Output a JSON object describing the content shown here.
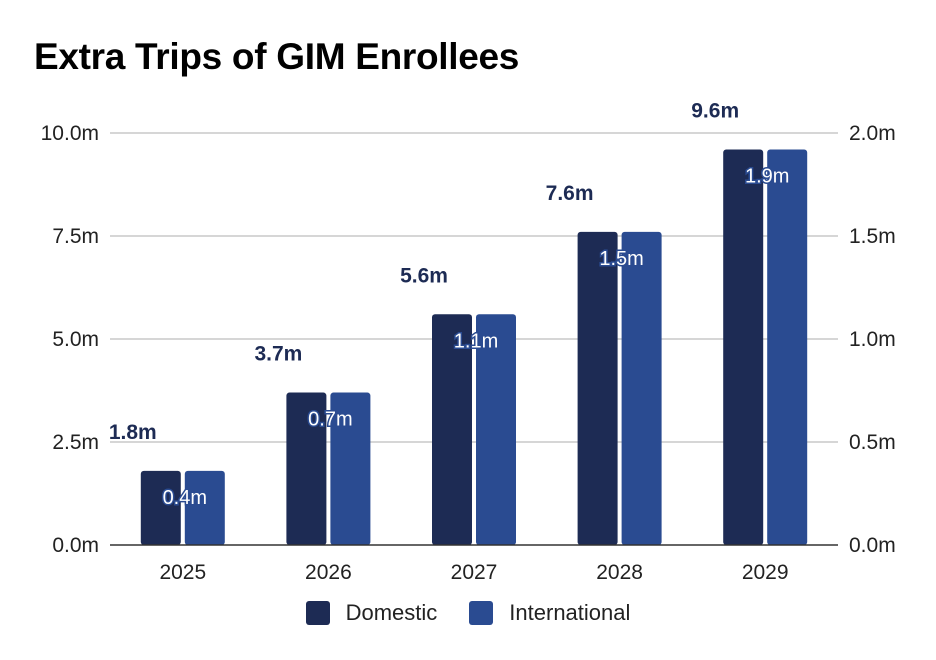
{
  "chart_data": {
    "type": "bar",
    "title": "Extra Trips of GIM Enrollees",
    "categories": [
      "2025",
      "2026",
      "2027",
      "2028",
      "2029"
    ],
    "series": [
      {
        "name": "Domestic",
        "axis": "left",
        "color": "#1d2b54",
        "values": [
          1.8,
          3.7,
          5.6,
          7.6,
          9.6
        ],
        "labels": [
          "1.8m",
          "3.7m",
          "5.6m",
          "7.6m",
          "9.6m"
        ]
      },
      {
        "name": "International",
        "axis": "right",
        "color": "#2a4b91",
        "values": [
          0.36,
          0.74,
          1.12,
          1.52,
          1.92
        ],
        "labels": [
          "0.4m",
          "0.7m",
          "1.1m",
          "1.5m",
          "1.9m"
        ]
      }
    ],
    "left_axis": {
      "ylim": [
        0,
        10
      ],
      "ticks": [
        0,
        2.5,
        5,
        7.5,
        10
      ],
      "tick_labels": [
        "0.0m",
        "2.5m",
        "5.0m",
        "7.5m",
        "10.0m"
      ]
    },
    "right_axis": {
      "ylim": [
        0,
        2
      ],
      "ticks": [
        0,
        0.5,
        1,
        1.5,
        2
      ],
      "tick_labels": [
        "0.0m",
        "0.5m",
        "1.0m",
        "1.5m",
        "2.0m"
      ]
    },
    "grid": true,
    "legend_position": "bottom-center"
  }
}
